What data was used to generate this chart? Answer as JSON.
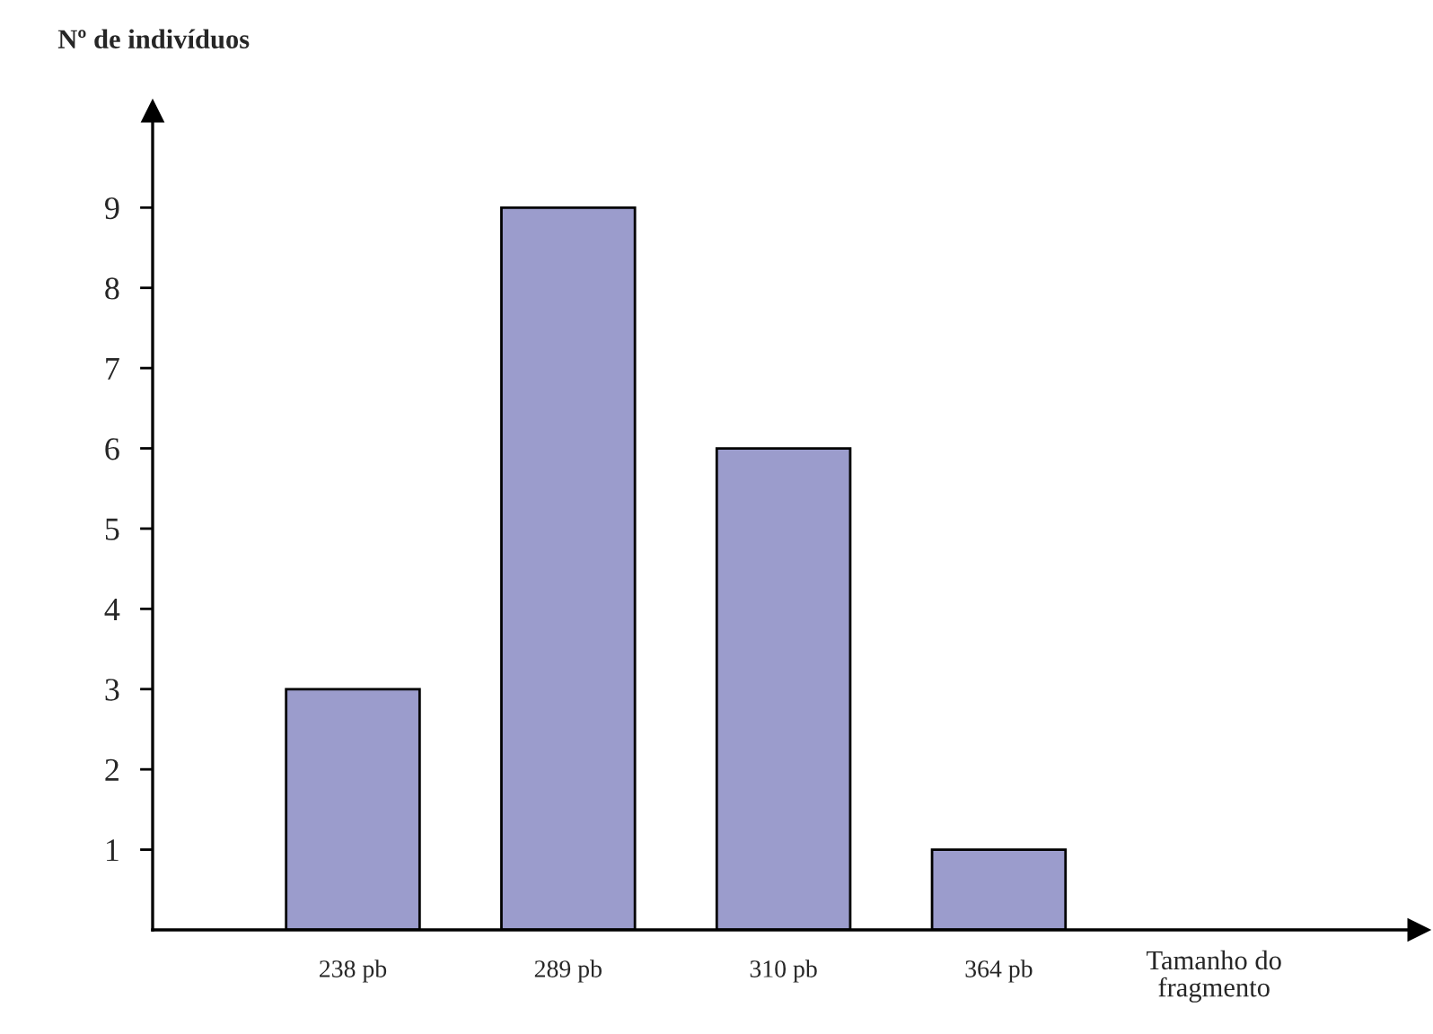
{
  "chart_data": {
    "type": "bar",
    "ylabel": "Nº de indivíduos",
    "xlabel": "Tamanho do fragmento",
    "categories": [
      "238 pb",
      "289 pb",
      "310 pb",
      "364 pb"
    ],
    "values": [
      3,
      9,
      6,
      1
    ],
    "color": "#9b9ccc",
    "ylim": [
      0,
      10.2
    ],
    "yticks": [
      1,
      2,
      3,
      4,
      5,
      6,
      7,
      8,
      9
    ],
    "grid": false,
    "legend": false
  }
}
